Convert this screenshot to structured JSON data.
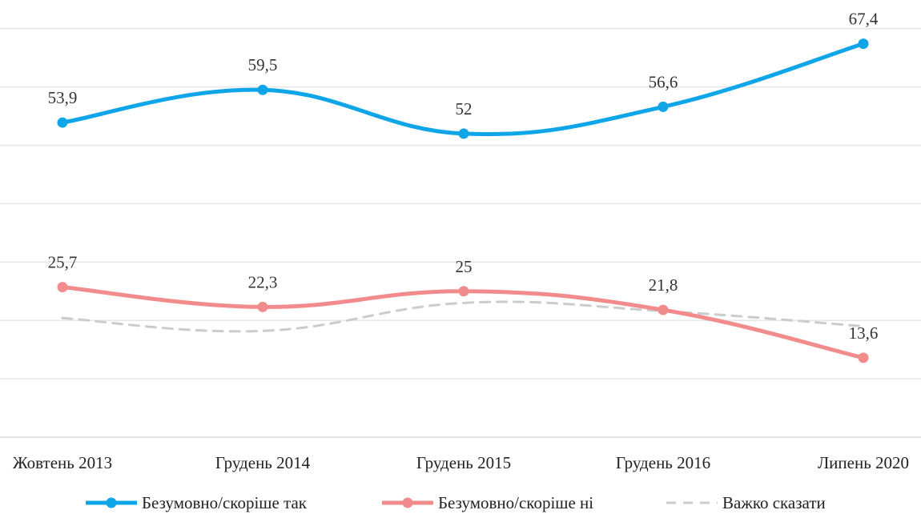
{
  "chart_data": {
    "type": "line",
    "categories": [
      "Жовтень 2013",
      "Грудень 2014",
      "Грудень 2015",
      "Грудень 2016",
      "Липень 2020"
    ],
    "series": [
      {
        "name": "Безумовно/скоріше так",
        "values": [
          53.9,
          59.5,
          52,
          56.6,
          67.4
        ],
        "labels": [
          "53,9",
          "59,5",
          "52",
          "56,6",
          "67,4"
        ],
        "color": "#0EA5E9",
        "style": "solid-markers"
      },
      {
        "name": "Безумовно/скоріше ні",
        "values": [
          25.7,
          22.3,
          25,
          21.8,
          13.6
        ],
        "labels": [
          "25,7",
          "22,3",
          "25",
          "21,8",
          "13,6"
        ],
        "color": "#F28B8B",
        "style": "solid-markers"
      },
      {
        "name": "Важко сказати",
        "values": [
          20.4,
          18.2,
          23.0,
          21.6,
          19.0
        ],
        "labels": [],
        "color": "#CCCCCC",
        "style": "dashed"
      }
    ],
    "ylim": [
      0,
      75
    ],
    "gridlines": [
      10,
      20,
      30,
      40,
      50,
      60,
      70
    ],
    "grid": true,
    "legend_position": "bottom"
  }
}
